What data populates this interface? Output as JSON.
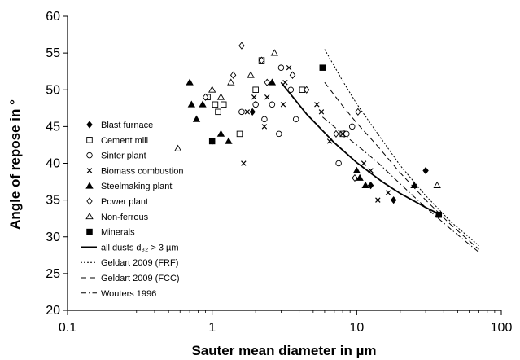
{
  "chart_data": {
    "type": "scatter",
    "xlabel": "Sauter mean diameter  in µm",
    "ylabel": "Angle of repose  in °",
    "xscale": "log",
    "xlim": [
      0.1,
      100
    ],
    "ylim": [
      20,
      60
    ],
    "x_ticks": [
      0.1,
      1,
      10,
      100
    ],
    "x_tick_labels": [
      "0.1",
      "1",
      "10",
      "100"
    ],
    "y_ticks": [
      20,
      25,
      30,
      35,
      40,
      45,
      50,
      55,
      60
    ],
    "y_tick_labels": [
      "20",
      "25",
      "30",
      "35",
      "40",
      "45",
      "50",
      "55",
      "60"
    ],
    "grid": false,
    "legend_position": "left",
    "series": [
      {
        "name": "Blast furnace",
        "marker": "diamond-filled",
        "points": [
          [
            1.0,
            43
          ],
          [
            1.9,
            47
          ],
          [
            2.0,
            48
          ],
          [
            3.6,
            52
          ],
          [
            8.2,
            44
          ],
          [
            12.5,
            37
          ],
          [
            18,
            35
          ],
          [
            30,
            39
          ]
        ]
      },
      {
        "name": "Cement mill",
        "marker": "square-open",
        "points": [
          [
            0.93,
            49
          ],
          [
            1.05,
            48
          ],
          [
            1.1,
            47
          ],
          [
            1.2,
            48
          ],
          [
            1.55,
            44
          ],
          [
            2.0,
            50
          ],
          [
            2.2,
            54
          ],
          [
            4.2,
            50
          ],
          [
            8.0,
            44
          ]
        ]
      },
      {
        "name": "Sinter plant",
        "marker": "circle-open",
        "points": [
          [
            1.6,
            47
          ],
          [
            2.0,
            48
          ],
          [
            2.3,
            46
          ],
          [
            2.6,
            48
          ],
          [
            2.9,
            44
          ],
          [
            3.0,
            53
          ],
          [
            3.5,
            50
          ],
          [
            3.8,
            46
          ],
          [
            7.5,
            40
          ],
          [
            8.5,
            44
          ],
          [
            9.3,
            45
          ]
        ]
      },
      {
        "name": "Biomass combustion",
        "marker": "x",
        "points": [
          [
            1.65,
            40
          ],
          [
            1.75,
            47
          ],
          [
            1.95,
            49
          ],
          [
            2.3,
            45
          ],
          [
            2.4,
            49
          ],
          [
            3.1,
            48
          ],
          [
            3.2,
            51
          ],
          [
            3.4,
            53
          ],
          [
            5.3,
            48
          ],
          [
            5.7,
            47
          ],
          [
            6.5,
            43
          ],
          [
            8.0,
            44
          ],
          [
            11.2,
            40
          ],
          [
            12.5,
            39
          ],
          [
            14.0,
            35
          ],
          [
            16.5,
            36
          ]
        ]
      },
      {
        "name": "Steelmaking plant",
        "marker": "triangle-filled",
        "points": [
          [
            0.7,
            51
          ],
          [
            0.72,
            48
          ],
          [
            0.78,
            46
          ],
          [
            0.86,
            48
          ],
          [
            1.15,
            44
          ],
          [
            1.3,
            43
          ],
          [
            2.6,
            51
          ],
          [
            10.0,
            39
          ],
          [
            10.5,
            38
          ],
          [
            11.5,
            37
          ],
          [
            25.0,
            37
          ]
        ]
      },
      {
        "name": "Power plant",
        "marker": "diamond-open",
        "points": [
          [
            0.9,
            49
          ],
          [
            1.4,
            52
          ],
          [
            1.6,
            56
          ],
          [
            2.2,
            54
          ],
          [
            2.4,
            51
          ],
          [
            3.6,
            52
          ],
          [
            4.5,
            50
          ],
          [
            7.2,
            44
          ],
          [
            9.7,
            38
          ],
          [
            10.2,
            47
          ]
        ]
      },
      {
        "name": "Non-ferrous",
        "marker": "triangle-open",
        "points": [
          [
            0.58,
            42
          ],
          [
            1.0,
            50
          ],
          [
            1.15,
            49
          ],
          [
            1.35,
            51
          ],
          [
            1.85,
            52
          ],
          [
            2.7,
            55
          ],
          [
            36.0,
            37
          ]
        ]
      },
      {
        "name": "Minerals",
        "marker": "square-filled",
        "points": [
          [
            1.0,
            43
          ],
          [
            5.8,
            53
          ],
          [
            37.0,
            33
          ]
        ]
      }
    ],
    "curves": [
      {
        "name": "all dusts d₃₂ > 3 µm",
        "style": "solid",
        "points": [
          [
            3.0,
            51
          ],
          [
            4.5,
            46.7
          ],
          [
            7,
            42.8
          ],
          [
            10,
            40.1
          ],
          [
            15,
            37.5
          ],
          [
            20,
            35.9
          ],
          [
            30,
            34.0
          ],
          [
            38,
            33.0
          ]
        ]
      },
      {
        "name": "Geldart 2009 (FRF)",
        "style": "dotted",
        "points": [
          [
            6.0,
            55.5
          ],
          [
            8,
            51.2
          ],
          [
            10,
            48.1
          ],
          [
            14,
            44.0
          ],
          [
            20,
            39.7
          ],
          [
            30,
            35.6
          ],
          [
            45,
            32.0
          ],
          [
            70,
            28.8
          ]
        ]
      },
      {
        "name": "Geldart 2009 (FCC)",
        "style": "dashed",
        "points": [
          [
            6.0,
            51.0
          ],
          [
            8,
            47.8
          ],
          [
            10,
            45.5
          ],
          [
            14,
            42.3
          ],
          [
            20,
            38.7
          ],
          [
            30,
            35.0
          ],
          [
            45,
            31.6
          ],
          [
            70,
            28.3
          ]
        ]
      },
      {
        "name": "Wouters 1996",
        "style": "dashdot",
        "points": [
          [
            5.8,
            46.3
          ],
          [
            8,
            44.0
          ],
          [
            10,
            42.5
          ],
          [
            14,
            40.1
          ],
          [
            20,
            37.2
          ],
          [
            30,
            34.0
          ],
          [
            45,
            31.0
          ],
          [
            70,
            27.9
          ]
        ]
      }
    ]
  }
}
